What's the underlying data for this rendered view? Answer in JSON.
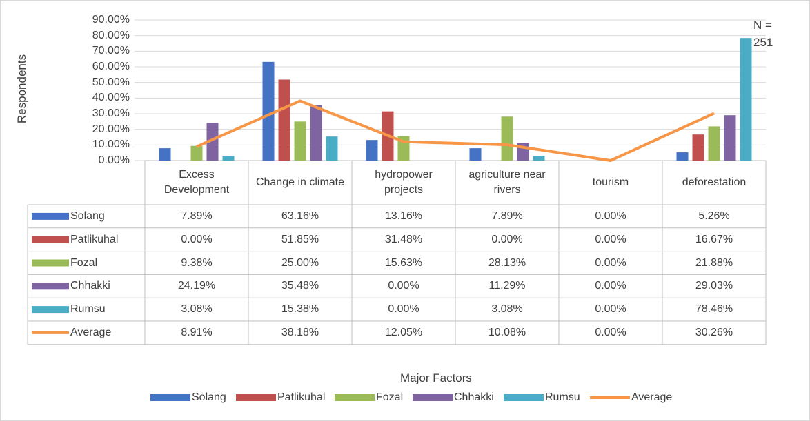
{
  "chart_data": {
    "type": "bar",
    "y_label": "Respondents",
    "x_label": "Major Factors",
    "annotation": "N = 251",
    "categories": [
      "Excess Development",
      "Change in climate",
      "hydropower projects",
      "agriculture near rivers",
      "tourism",
      "deforestation"
    ],
    "series": [
      {
        "name": "Solang",
        "color": "#4472C4",
        "values": [
          7.89,
          63.16,
          13.16,
          7.89,
          0,
          5.26
        ],
        "value_labels": [
          "7.89%",
          "63.16%",
          "13.16%",
          "7.89%",
          "0.00%",
          "5.26%"
        ]
      },
      {
        "name": "Patlikuhal",
        "color": "#C0504D",
        "values": [
          0,
          51.85,
          31.48,
          0,
          0,
          16.67
        ],
        "value_labels": [
          "0.00%",
          "51.85%",
          "31.48%",
          "0.00%",
          "0.00%",
          "16.67%"
        ]
      },
      {
        "name": "Fozal",
        "color": "#9BBB59",
        "values": [
          9.38,
          25,
          15.63,
          28.13,
          0,
          21.88
        ],
        "value_labels": [
          "9.38%",
          "25.00%",
          "15.63%",
          "28.13%",
          "0.00%",
          "21.88%"
        ]
      },
      {
        "name": "Chhakki",
        "color": "#8064A2",
        "values": [
          24.19,
          35.48,
          0,
          11.29,
          0,
          29.03
        ],
        "value_labels": [
          "24.19%",
          "35.48%",
          "0.00%",
          "11.29%",
          "0.00%",
          "29.03%"
        ]
      },
      {
        "name": "Rumsu",
        "color": "#4BACC6",
        "values": [
          3.08,
          15.38,
          0,
          3.08,
          0,
          78.46
        ],
        "value_labels": [
          "3.08%",
          "15.38%",
          "0.00%",
          "3.08%",
          "0.00%",
          "78.46%"
        ]
      },
      {
        "name": "Average",
        "type": "line",
        "color": "#F79646",
        "values": [
          8.91,
          38.18,
          12.05,
          10.08,
          0,
          30.26
        ],
        "value_labels": [
          "8.91%",
          "38.18%",
          "12.05%",
          "10.08%",
          "0.00%",
          "30.26%"
        ]
      }
    ],
    "ylim": [
      0,
      90
    ],
    "yticks": [
      {
        "value": 0,
        "label": "0.00%"
      },
      {
        "value": 10,
        "label": "10.00%"
      },
      {
        "value": 20,
        "label": "20.00%"
      },
      {
        "value": 30,
        "label": "30.00%"
      },
      {
        "value": 40,
        "label": "40.00%"
      },
      {
        "value": 50,
        "label": "50.00%"
      },
      {
        "value": 60,
        "label": "60.00%"
      },
      {
        "value": 70,
        "label": "70.00%"
      },
      {
        "value": 80,
        "label": "80.00%"
      },
      {
        "value": 90,
        "label": "90.00%"
      }
    ],
    "grid": true,
    "legend": "bottom"
  }
}
